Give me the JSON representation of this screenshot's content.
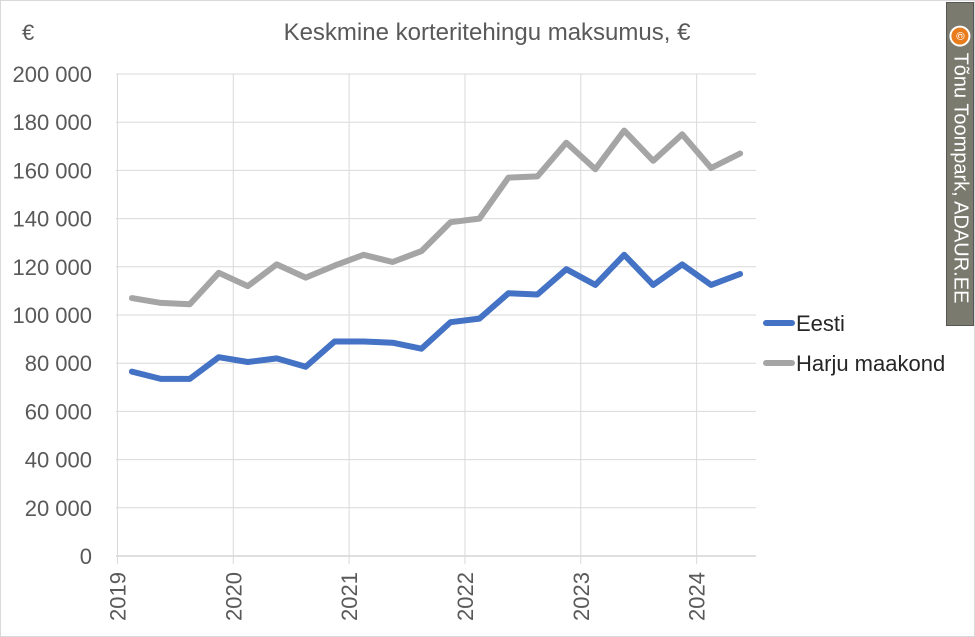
{
  "chart_data": {
    "type": "line",
    "title": "Keskmine korteritehingu maksumus, €",
    "ylabel": "€",
    "xlabel": "",
    "ylim": [
      0,
      200000
    ],
    "yticks": [
      0,
      20000,
      40000,
      60000,
      80000,
      100000,
      120000,
      140000,
      160000,
      180000,
      200000
    ],
    "ytick_labels": [
      "0",
      "20 000",
      "40 000",
      "60 000",
      "80 000",
      "100 000",
      "120 000",
      "140 000",
      "160 000",
      "180 000",
      "200 000"
    ],
    "x_tick_labels": [
      "2019",
      "2020",
      "2021",
      "2022",
      "2023",
      "2024"
    ],
    "x": [
      "2019 Q1",
      "2019 Q2",
      "2019 Q3",
      "2019 Q4",
      "2020 Q1",
      "2020 Q2",
      "2020 Q3",
      "2020 Q4",
      "2021 Q1",
      "2021 Q2",
      "2021 Q3",
      "2021 Q4",
      "2022 Q1",
      "2022 Q2",
      "2022 Q3",
      "2022 Q4",
      "2023 Q1",
      "2023 Q2",
      "2023 Q3",
      "2023 Q4",
      "2024 Q1",
      "2024 Q2"
    ],
    "grid": true,
    "legend_position": "right",
    "series": [
      {
        "name": "Eesti",
        "color": "#4472c4",
        "values": [
          76500,
          73500,
          73500,
          82500,
          80500,
          82000,
          78500,
          89000,
          89000,
          88500,
          86000,
          97000,
          98500,
          109000,
          108500,
          119000,
          112500,
          125000,
          112500,
          121000,
          112500,
          117000
        ]
      },
      {
        "name": "Harju maakond",
        "color": "#a5a5a5",
        "values": [
          107000,
          105000,
          104500,
          117500,
          112000,
          121000,
          115500,
          120500,
          125000,
          122000,
          126500,
          138500,
          140000,
          157000,
          157500,
          171500,
          160500,
          176500,
          164000,
          175000,
          161000,
          167000
        ]
      }
    ]
  },
  "credit": {
    "icon": "copyright-icon",
    "symbol": "©",
    "text": "Tõnu Toompark, ADAUR.EE"
  }
}
